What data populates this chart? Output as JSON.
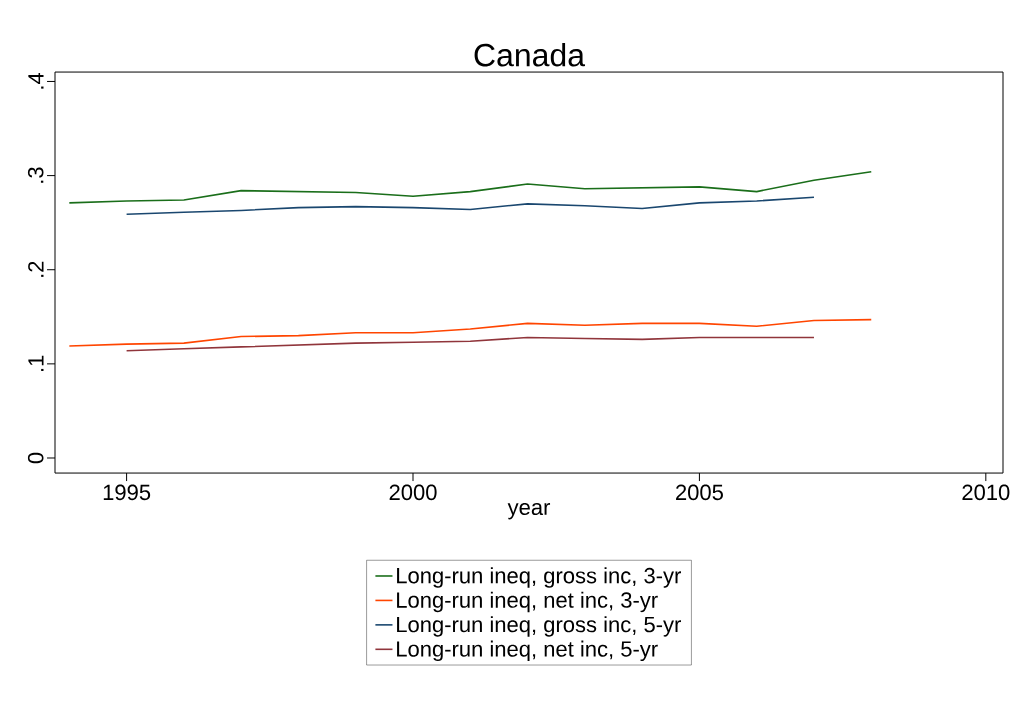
{
  "chart_data": {
    "type": "line",
    "title": "Canada",
    "xlabel": "year",
    "x": [
      1994,
      1995,
      1996,
      1997,
      1998,
      1999,
      2000,
      2001,
      2002,
      2003,
      2004,
      2005,
      2006,
      2007,
      2008
    ],
    "series": [
      {
        "name": "Long-run ineq, gross inc, 3-yr",
        "color": "#1a6e1a",
        "values": [
          0.271,
          0.273,
          0.274,
          0.284,
          0.283,
          0.282,
          0.278,
          0.283,
          0.291,
          0.286,
          0.287,
          0.288,
          0.283,
          0.295,
          0.304
        ]
      },
      {
        "name": "Long-run ineq, net inc, 3-yr",
        "color": "#ff4500",
        "values": [
          0.119,
          0.121,
          0.122,
          0.129,
          0.13,
          0.133,
          0.133,
          0.137,
          0.143,
          0.141,
          0.143,
          0.143,
          0.14,
          0.146,
          0.147
        ]
      },
      {
        "name": "Long-run ineq, gross inc, 5-yr",
        "color": "#1a476f",
        "values": [
          null,
          0.259,
          0.261,
          0.263,
          0.266,
          0.267,
          0.266,
          0.264,
          0.27,
          0.268,
          0.265,
          0.271,
          0.273,
          0.277,
          null
        ]
      },
      {
        "name": "Long-run ineq, net inc, 5-yr",
        "color": "#90353b",
        "values": [
          null,
          0.114,
          0.116,
          0.118,
          0.12,
          0.122,
          0.123,
          0.124,
          0.128,
          0.127,
          0.126,
          0.128,
          0.128,
          0.128,
          null
        ]
      }
    ],
    "xlim": [
      1993.75,
      2010.3
    ],
    "ylim": [
      -0.016,
      0.41
    ],
    "xticks": [
      1995,
      2000,
      2005,
      2010
    ],
    "yticks": [
      {
        "value": 0,
        "label": "0"
      },
      {
        "value": 0.1,
        "label": ".1"
      },
      {
        "value": 0.2,
        "label": ".2"
      },
      {
        "value": 0.3,
        "label": ".3"
      },
      {
        "value": 0.4,
        "label": ".4"
      }
    ],
    "grid": false,
    "legend": "bottom",
    "marker": "none",
    "line_style": "solid"
  }
}
